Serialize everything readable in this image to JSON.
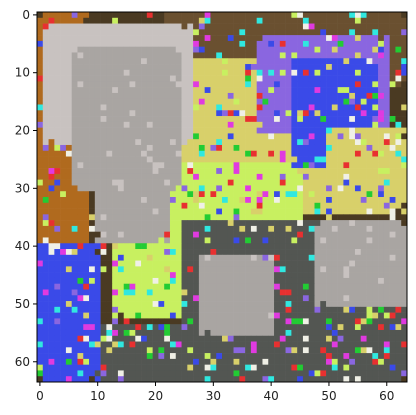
{
  "chart_data": {
    "type": "heatmap",
    "title": "",
    "xlabel": "",
    "ylabel": "",
    "grid": false,
    "legend": "none",
    "colorbar": false,
    "image_size": [
      64,
      64
    ],
    "xlim": [
      -0.5,
      63.5
    ],
    "ylim": [
      63.5,
      -0.5
    ],
    "y_axis_inverted": true,
    "x_ticks": [
      0,
      10,
      20,
      30,
      40,
      50,
      60
    ],
    "y_ticks": [
      0,
      10,
      20,
      30,
      40,
      50,
      60
    ],
    "colors": {
      "bg": "#4a3a22",
      "gray": "#a9a5a2",
      "lightgray": "#c8c2c0",
      "yellow": "#d8d06a",
      "lime": "#c8f060",
      "orange": "#b06a1e",
      "brown": "#6a5030",
      "blue": "#3a4ae8",
      "violet": "#8a66e0",
      "magenta": "#e03ae0",
      "cyan": "#30e8e0",
      "green": "#22cc33",
      "red": "#e83030",
      "darkgray": "#535652",
      "white": "#f0f0e6"
    },
    "regions": [
      {
        "color": "bg",
        "x": [
          0,
          63
        ],
        "y": [
          0,
          63
        ]
      },
      {
        "color": "orange",
        "x": [
          0,
          8
        ],
        "y": [
          0,
          63
        ]
      },
      {
        "color": "brown",
        "x": [
          22,
          63
        ],
        "y": [
          0,
          12
        ]
      },
      {
        "color": "yellow",
        "x": [
          20,
          50
        ],
        "y": [
          8,
          34
        ]
      },
      {
        "color": "lime",
        "x": [
          22,
          45
        ],
        "y": [
          26,
          40
        ]
      },
      {
        "color": "violet",
        "x": [
          38,
          60
        ],
        "y": [
          4,
          20
        ]
      },
      {
        "color": "blue",
        "x": [
          44,
          58
        ],
        "y": [
          8,
          26
        ]
      },
      {
        "color": "yellow",
        "x": [
          50,
          63
        ],
        "y": [
          20,
          34
        ]
      },
      {
        "color": "lime",
        "x": [
          13,
          25
        ],
        "y": [
          35,
          52
        ]
      },
      {
        "color": "darkgray",
        "x": [
          25,
          63
        ],
        "y": [
          36,
          63
        ]
      },
      {
        "color": "darkgray",
        "x": [
          8,
          28
        ],
        "y": [
          54,
          63
        ]
      },
      {
        "color": "blue",
        "x": [
          0,
          10
        ],
        "y": [
          40,
          63
        ]
      },
      {
        "color": "lightgray",
        "x": [
          1,
          26
        ],
        "y": [
          2,
          22
        ]
      },
      {
        "color": "gray",
        "x": [
          6,
          24
        ],
        "y": [
          6,
          30
        ]
      },
      {
        "color": "gray",
        "x": [
          10,
          22
        ],
        "y": [
          20,
          39
        ]
      },
      {
        "color": "gray",
        "x": [
          48,
          63
        ],
        "y": [
          36,
          50
        ]
      },
      {
        "color": "gray",
        "x": [
          28,
          40
        ],
        "y": [
          42,
          55
        ]
      }
    ],
    "noise_colors": [
      "blue",
      "magenta",
      "cyan",
      "green",
      "red",
      "lime",
      "white",
      "violet",
      "yellow"
    ],
    "noise_density": 0.18
  }
}
